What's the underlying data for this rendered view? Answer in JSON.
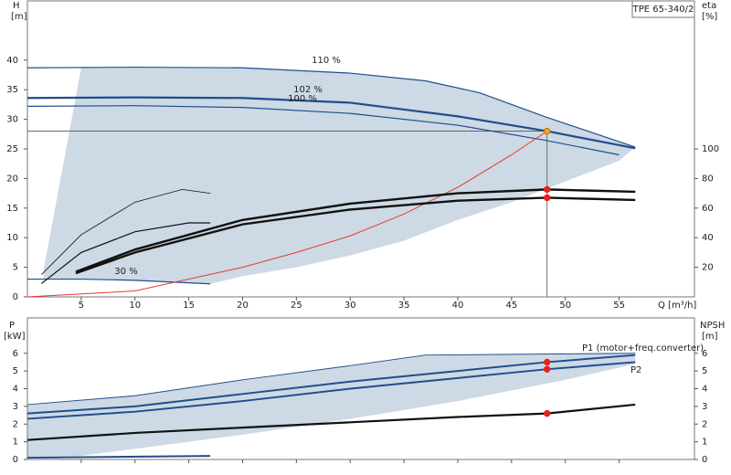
{
  "chart_data": [
    {
      "type": "line",
      "title": "TPE 65-340/2",
      "y_label": "H",
      "y_unit": "[m]",
      "y2_label": "eta",
      "y2_unit": "[%]",
      "x_label": "Q [m³/h]",
      "xlim": [
        0,
        62
      ],
      "xticks": [
        5,
        10,
        15,
        20,
        25,
        30,
        35,
        40,
        45,
        50,
        55
      ],
      "ylim": [
        0,
        50
      ],
      "yticks": [
        0,
        5,
        10,
        15,
        20,
        25,
        30,
        35,
        40
      ],
      "y2lim": [
        0,
        200
      ],
      "y2ticks": [
        20,
        40,
        60,
        80,
        100
      ],
      "area": {
        "color": "#cdd9e5",
        "x": [
          5,
          20,
          30,
          37,
          42,
          48,
          56.5,
          55,
          50,
          45,
          40,
          35,
          30,
          25,
          20,
          17,
          10,
          5,
          1.5,
          1.5
        ],
        "values": [
          38.7,
          38.7,
          37.8,
          36.5,
          34.5,
          30.5,
          25.3,
          23,
          19.5,
          16,
          13,
          9.5,
          7,
          5,
          3.5,
          2.2,
          2.8,
          3,
          3,
          4.5
        ]
      },
      "duty_point": {
        "x": 48.3,
        "y": 28
      },
      "series": [
        {
          "name": "110 %",
          "color": "#1f4e8c",
          "width": 1.2,
          "x": [
            0,
            10,
            20,
            30,
            37,
            42,
            48,
            56.5
          ],
          "values": [
            38.7,
            38.8,
            38.7,
            37.8,
            36.5,
            34.5,
            30.5,
            25.3
          ]
        },
        {
          "name": "102 %",
          "color": "#1f4e8c",
          "width": 2.2,
          "x": [
            0,
            10,
            20,
            30,
            40,
            48.3,
            56.5
          ],
          "values": [
            33.6,
            33.7,
            33.6,
            32.8,
            30.5,
            28,
            25.1
          ]
        },
        {
          "name": "100 %",
          "color": "#1f4e8c",
          "width": 1.2,
          "x": [
            0,
            10,
            20,
            30,
            40,
            48,
            55
          ],
          "values": [
            32.2,
            32.3,
            32,
            31,
            29,
            26.5,
            24
          ]
        },
        {
          "name": "30 %",
          "color": "#1f4e8c",
          "width": 1.2,
          "x": [
            0,
            5,
            10,
            17
          ],
          "values": [
            3,
            3,
            2.8,
            2.2
          ]
        },
        {
          "color": "#e8392f",
          "width": 1,
          "x": [
            0,
            10,
            20,
            25,
            30,
            35,
            40,
            45,
            48.3
          ],
          "values": [
            0,
            1,
            5,
            7.5,
            10.3,
            14,
            18.5,
            24,
            28
          ]
        },
        {
          "axis": "y2",
          "color": "#111",
          "width": 2.4,
          "x": [
            4.5,
            10,
            20,
            30,
            40,
            48.3,
            56.5
          ],
          "values": [
            17,
            32,
            52,
            63,
            70,
            72.6,
            71
          ]
        },
        {
          "axis": "y2",
          "color": "#111",
          "width": 2.4,
          "x": [
            4.5,
            10,
            20,
            30,
            40,
            48.3,
            56.5
          ],
          "values": [
            16,
            30,
            49,
            59,
            65,
            67,
            65.5
          ]
        },
        {
          "axis": "y2",
          "color": "#111",
          "width": 0.8,
          "x": [
            1.3,
            5,
            10,
            14.4,
            17
          ],
          "values": [
            15,
            42,
            64,
            72.6,
            70
          ]
        },
        {
          "axis": "y2",
          "color": "#111",
          "width": 1.2,
          "x": [
            1.3,
            5,
            10,
            15,
            17
          ],
          "values": [
            9,
            30,
            44,
            50,
            50
          ]
        },
        {
          "color": "#f5a623",
          "marker": true,
          "x": [
            48.3
          ],
          "values": [
            28
          ]
        },
        {
          "axis": "y2",
          "color": "#e8201a",
          "marker": true,
          "x": [
            48.3,
            48.3
          ],
          "values": [
            72.6,
            67
          ]
        }
      ]
    },
    {
      "type": "line",
      "y_label": "P",
      "y_unit": "[kW]",
      "y2_label": "NPSH",
      "y2_unit": "[m]",
      "xlim": [
        0,
        62
      ],
      "xticks": [
        5,
        10,
        15,
        20,
        25,
        30,
        35,
        40,
        45,
        50,
        55
      ],
      "ylim": [
        0,
        8
      ],
      "yticks": [
        0,
        1,
        2,
        3,
        4,
        5,
        6
      ],
      "y2lim": [
        0,
        8
      ],
      "y2ticks": [
        0,
        1,
        2,
        3,
        4,
        5,
        6
      ],
      "area": {
        "color": "#cdd9e5",
        "x": [
          0,
          10,
          20,
          30,
          37,
          56.5,
          56.5,
          50,
          40,
          30,
          20,
          10,
          3,
          0
        ],
        "values": [
          3.1,
          3.6,
          4.5,
          5.3,
          5.9,
          6,
          5.4,
          4.5,
          3.3,
          2.3,
          1.4,
          0.6,
          0.05,
          0.05
        ]
      },
      "series": [
        {
          "name": "P1 (motor+freq.converter)",
          "color": "#1f4e8c",
          "width": 2,
          "x": [
            0,
            10,
            20,
            30,
            40,
            48.3,
            56.5
          ],
          "values": [
            2.6,
            3,
            3.7,
            4.4,
            5,
            5.5,
            5.9
          ]
        },
        {
          "name": "P2",
          "color": "#1f4e8c",
          "width": 2,
          "x": [
            0,
            10,
            20,
            30,
            40,
            48.3,
            56.5
          ],
          "values": [
            2.3,
            2.7,
            3.3,
            4,
            4.6,
            5.1,
            5.5
          ]
        },
        {
          "color": "#1f4e8c",
          "width": 1,
          "x": [
            0,
            10,
            20,
            30,
            37,
            56.5
          ],
          "values": [
            3.1,
            3.6,
            4.5,
            5.3,
            5.9,
            6
          ]
        },
        {
          "color": "#1f4e8c",
          "width": 2,
          "x": [
            0,
            17
          ],
          "values": [
            0.1,
            0.2
          ]
        },
        {
          "axis": "y2",
          "color": "#111",
          "width": 2.2,
          "x": [
            0,
            10,
            20,
            30,
            40,
            48.3,
            56.5
          ],
          "values": [
            1.1,
            1.5,
            1.8,
            2.1,
            2.4,
            2.6,
            3.1
          ]
        },
        {
          "color": "#e8201a",
          "marker": true,
          "x": [
            48.3,
            48.3
          ],
          "values": [
            5.5,
            5.1
          ]
        },
        {
          "axis": "y2",
          "color": "#e8201a",
          "marker": true,
          "x": [
            48.3
          ],
          "values": [
            2.6
          ]
        }
      ]
    }
  ]
}
